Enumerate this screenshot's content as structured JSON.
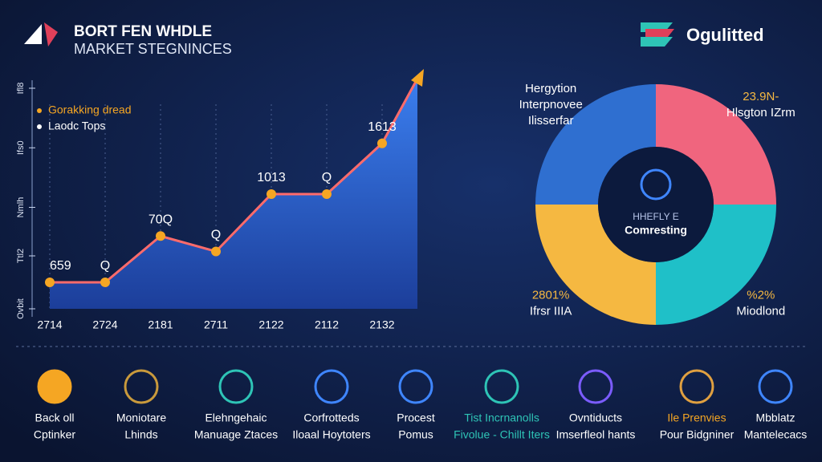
{
  "header": {
    "title": "BORT FEN WHDLE",
    "subtitle": "MARKET STEGNINCES",
    "brand": "Ogulitted"
  },
  "chart_data": [
    {
      "type": "area",
      "categories": [
        "2714",
        "2724",
        "2181",
        "2711",
        "2122",
        "2112",
        "2132"
      ],
      "series": [
        {
          "name": "Gorakking dread",
          "color": "#f5a623",
          "values": [
            12,
            12,
            33,
            26,
            52,
            52,
            75
          ]
        }
      ],
      "legend": [
        {
          "label": "Gorakking dread",
          "color": "#f5a623"
        },
        {
          "label": "Laodc Tops",
          "color": "#ffffff"
        }
      ],
      "annotations": [
        "659",
        "Q",
        "70Q",
        "Q",
        "1013",
        "Q",
        "1613"
      ],
      "ylim": [
        0,
        100
      ],
      "yticks": [
        {
          "value": 0,
          "label": "Ovbit"
        },
        {
          "value": 24,
          "label": "Ttl2"
        },
        {
          "value": 46,
          "label": "Nmlh"
        },
        {
          "value": 73,
          "label": "Ifs0"
        },
        {
          "value": 100,
          "label": "Ifl8"
        }
      ]
    },
    {
      "type": "pie",
      "categories": [
        "Hlsgton IZrm",
        "Miodlond",
        "Ifrsr IIIA",
        "Ilisserfar"
      ],
      "values": [
        25,
        25,
        25,
        25
      ],
      "colors": [
        "#f0657e",
        "#1fc0c8",
        "#f5b841",
        "#2f6fd0"
      ],
      "labels": [
        [
          "23.9N-",
          "Hlsgton IZrm"
        ],
        [
          "%2%",
          "Miodlond"
        ],
        [
          "2801%",
          "Ifrsr IIIA"
        ],
        [
          "Hergytion",
          "Interpnovee",
          "Ilisserfar"
        ]
      ],
      "center": [
        "HHEFLY E",
        "Comresting"
      ]
    }
  ],
  "features": [
    [
      "Back oll",
      "Cptinker"
    ],
    [
      "Moniotare",
      "Lhinds"
    ],
    [
      "Elehngehaic",
      "Manuage Ztaces"
    ],
    [
      "Corfrotteds",
      "Iloaal Hoytoters"
    ],
    [
      "Procest",
      "Pomus"
    ],
    [
      "Tist Incrnanolls",
      "Fivolue - Chillt Iters"
    ],
    [
      "Ovntiducts",
      "Imserfleol hants"
    ],
    [
      "Ile Prenvies",
      "Pour Bidgniner"
    ],
    [
      "Mbblatz",
      "Mantelecacs"
    ]
  ]
}
